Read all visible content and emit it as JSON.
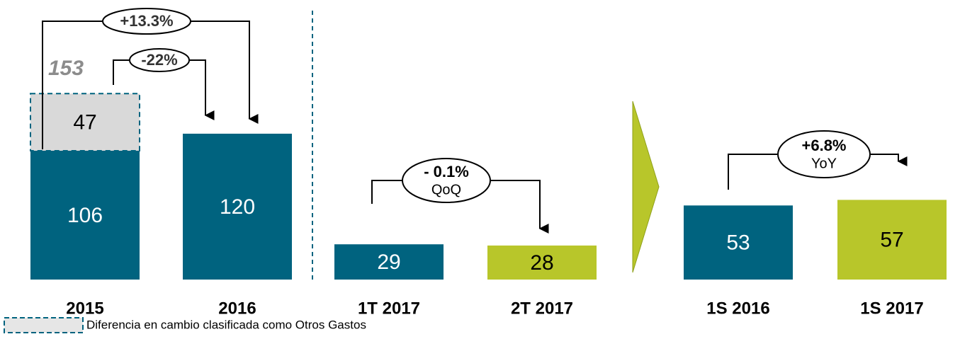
{
  "chart_data": [
    {
      "type": "bar",
      "stacked": true,
      "categories": [
        "2015",
        "2016"
      ],
      "series": [
        {
          "color": "#00637f",
          "values": [
            106,
            120
          ]
        },
        {
          "name": "Diferencia en cambio clasificada como Otros Gastos",
          "color": "#d9d9d9",
          "values": [
            47,
            null
          ]
        }
      ],
      "total_labels": [
        153,
        null
      ],
      "ylim": [
        0,
        230
      ],
      "annotations": [
        {
          "label": "+13.3%"
        },
        {
          "label": "-22%"
        }
      ]
    },
    {
      "type": "bar",
      "categories": [
        "1T 2017",
        "2T 2017"
      ],
      "series": [
        {
          "colors": [
            "#00637f",
            "#b8c62a"
          ],
          "values": [
            29,
            28
          ]
        }
      ],
      "ylim": [
        0,
        230
      ],
      "annotations": [
        {
          "label": "- 0.1%",
          "sublabel": "QoQ"
        }
      ]
    },
    {
      "type": "bar",
      "categories": [
        "1S 2016",
        "1S 2017"
      ],
      "series": [
        {
          "colors": [
            "#00637f",
            "#b8c62a"
          ],
          "values": [
            53,
            57
          ]
        }
      ],
      "ylim": [
        0,
        200
      ],
      "annotations": [
        {
          "label": "+6.8%",
          "sublabel": "YoY"
        }
      ]
    }
  ]
}
